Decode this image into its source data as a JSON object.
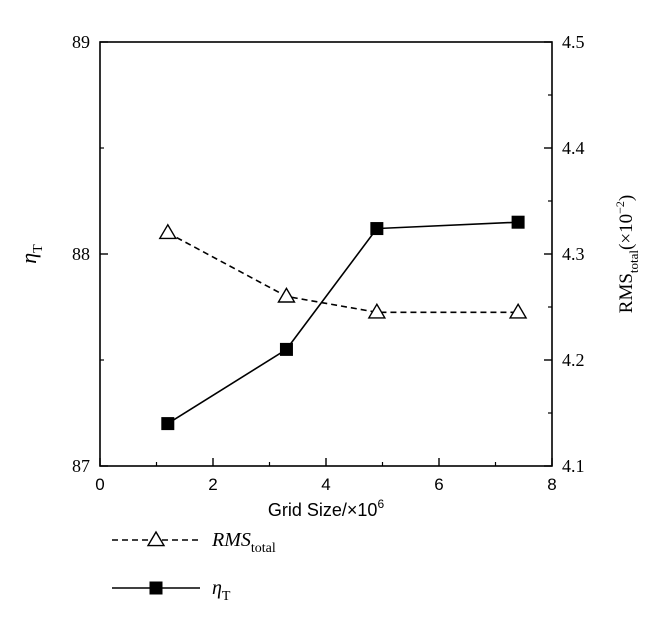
{
  "chart_data": {
    "type": "line",
    "xlabel": "Grid Size/×10",
    "xlabel_sup": "6",
    "xlim": [
      0,
      8
    ],
    "x_ticks": [
      "0",
      "2",
      "4",
      "6",
      "8"
    ],
    "y_left": {
      "label_main": "η",
      "label_sub": "T",
      "ylim": [
        87,
        89
      ],
      "ticks": [
        "87",
        "88",
        "89"
      ]
    },
    "y_right": {
      "label_main": "RMS",
      "label_sub": "total",
      "label_suffix": "(×10",
      "label_sup": "−2",
      "label_close": ")",
      "ylim": [
        4.1,
        4.5
      ],
      "ticks": [
        "4.1",
        "4.2",
        "4.3",
        "4.4",
        "4.5"
      ]
    },
    "grid": false,
    "legend_position": "bottom-left, below plot",
    "series": [
      {
        "name": "RMS_total",
        "name_main": "RMS",
        "name_sub": "total",
        "axis": "right",
        "line_style": "dashed",
        "marker": "open-triangle",
        "color": "#000000",
        "x": [
          1.2,
          3.3,
          4.9,
          7.4
        ],
        "y": [
          4.32,
          4.26,
          4.245,
          4.245
        ]
      },
      {
        "name": "η_T",
        "name_main": "η",
        "name_sub": "T",
        "axis": "left",
        "line_style": "solid",
        "marker": "filled-square",
        "color": "#000000",
        "x": [
          1.2,
          3.3,
          4.9,
          7.4
        ],
        "y": [
          87.2,
          87.55,
          88.12,
          88.15
        ]
      }
    ]
  }
}
